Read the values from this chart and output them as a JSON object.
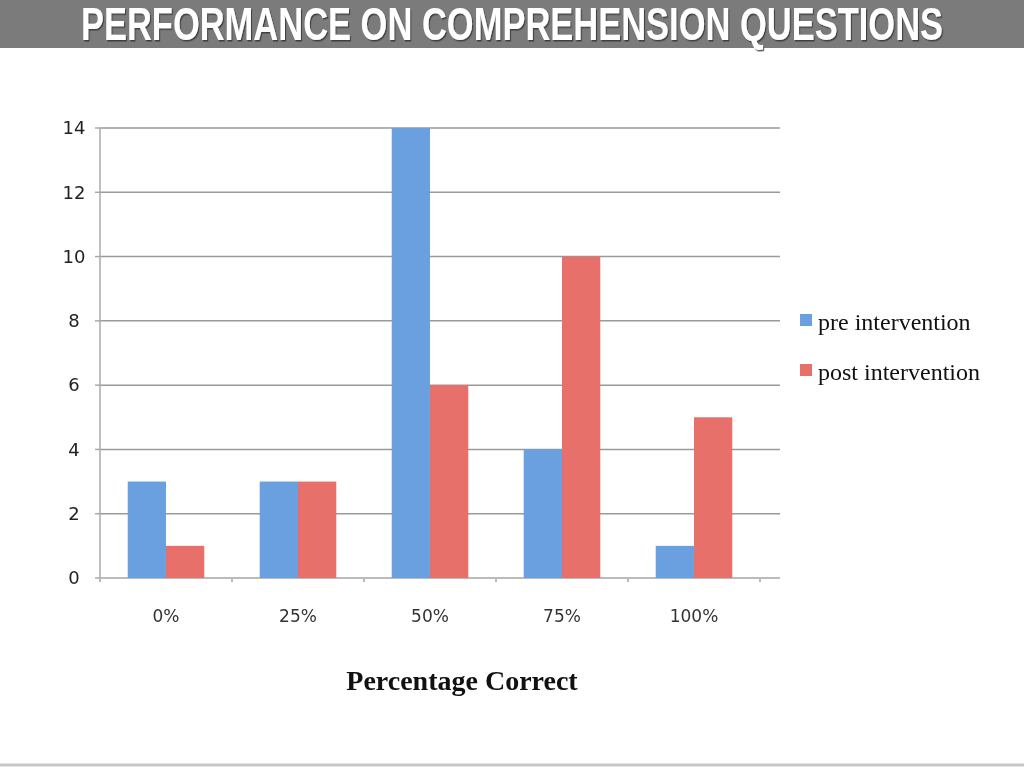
{
  "chart_data": {
    "type": "bar",
    "title": "PERFORMANCE ON COMPREHENSION QUESTIONS",
    "xlabel": "Percentage Correct",
    "categories": [
      "0%",
      "25%",
      "50%",
      "75%",
      "100%"
    ],
    "series": [
      {
        "name": "pre intervention",
        "color": "#6a9fe0",
        "values": [
          3,
          3,
          14,
          4,
          1
        ]
      },
      {
        "name": "post intervention",
        "color": "#e8706a",
        "values": [
          1,
          3,
          6,
          10,
          5
        ]
      }
    ],
    "ylim": [
      0,
      14
    ],
    "yticks": [
      0,
      2,
      4,
      6,
      8,
      10,
      12,
      14
    ],
    "grid": "y",
    "legend": "right"
  }
}
